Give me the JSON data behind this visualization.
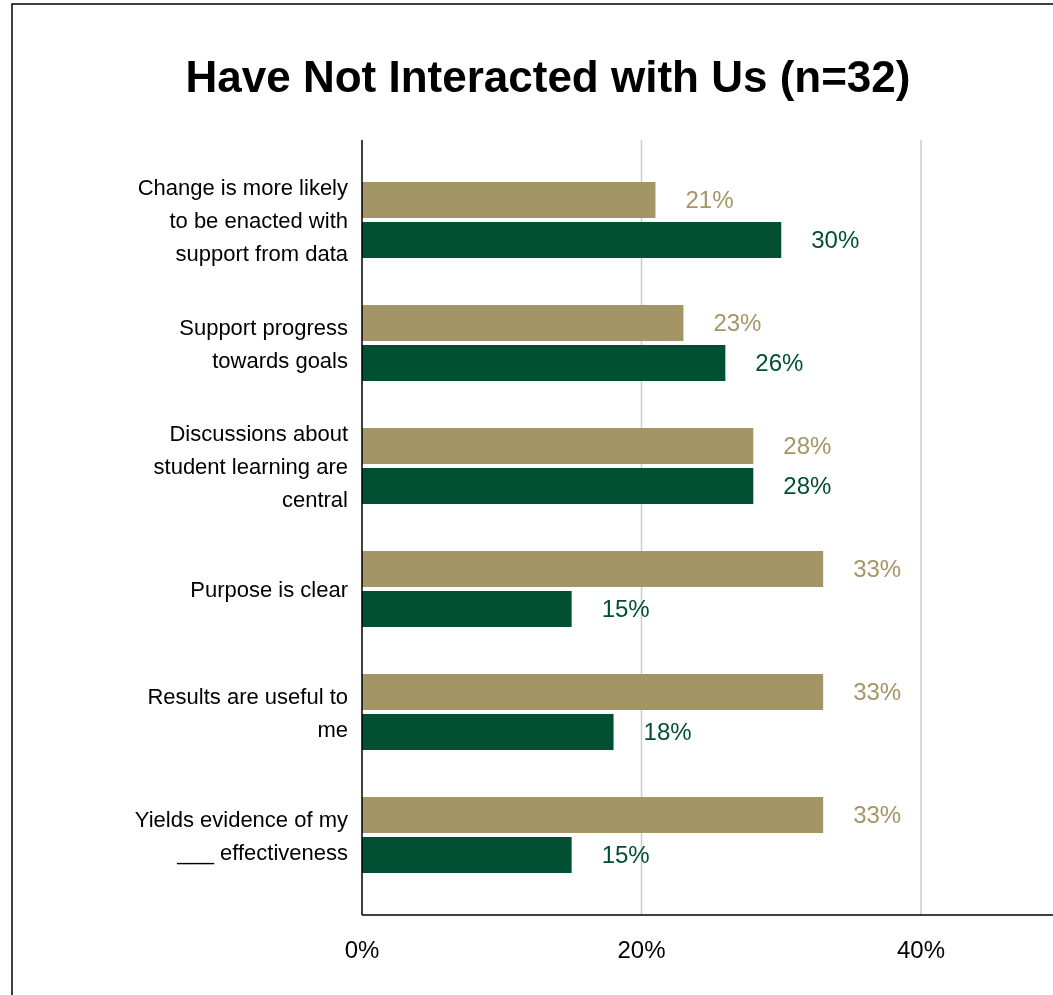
{
  "chart_data": {
    "type": "bar",
    "orientation": "horizontal",
    "title": "Have Not Interacted with Us (n=32)",
    "categories": [
      "Change is more likely to be enacted with support from data",
      "Support progress towards goals",
      "Discussions about student learning are central",
      "Purpose is clear",
      "Results are useful to me",
      "Yields evidence of my ___ effectiveness"
    ],
    "series": [
      {
        "color": "#a39565",
        "values": [
          21,
          23,
          28,
          33,
          33,
          33
        ],
        "value_labels": [
          "21%",
          "23%",
          "28%",
          "33%",
          "33%",
          "33%"
        ]
      },
      {
        "color": "#004f33",
        "values": [
          30,
          26,
          28,
          15,
          18,
          15
        ],
        "value_labels": [
          "30%",
          "26%",
          "28%",
          "15%",
          "18%",
          "15%"
        ]
      }
    ],
    "xlim": [
      0,
      50
    ],
    "xticks": [
      {
        "value": 0,
        "label": "0%"
      },
      {
        "value": 20,
        "label": "20%"
      },
      {
        "value": 40,
        "label": "40%"
      }
    ],
    "grid": "x"
  }
}
